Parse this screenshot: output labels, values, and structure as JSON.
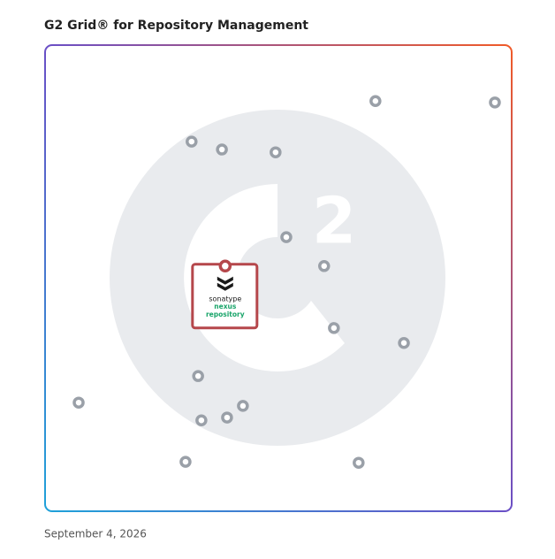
{
  "chart_data": {
    "type": "scatter",
    "title": "G2 Grid® for Repository Management",
    "x": [
      70.8,
      96.4,
      31.4,
      37.9,
      49.4,
      51.7,
      59.8,
      61.9,
      76.9,
      32.8,
      7.2,
      42.4,
      39.0,
      33.5,
      30.1,
      67.2
    ],
    "values": [
      88.0,
      87.7,
      79.3,
      77.6,
      77.0,
      58.8,
      52.6,
      39.3,
      36.1,
      29.0,
      23.3,
      22.6,
      20.1,
      19.5,
      10.6,
      10.4
    ],
    "color": "#9aa0a8",
    "highlight": {
      "x": 38.6,
      "y": 52.6,
      "labels": [
        "sonatype",
        "nexus",
        "repository"
      ],
      "color": "#b5474b"
    },
    "xlim": [
      0,
      100
    ],
    "ylim": [
      0,
      100
    ],
    "date": "September 4, 2026"
  }
}
